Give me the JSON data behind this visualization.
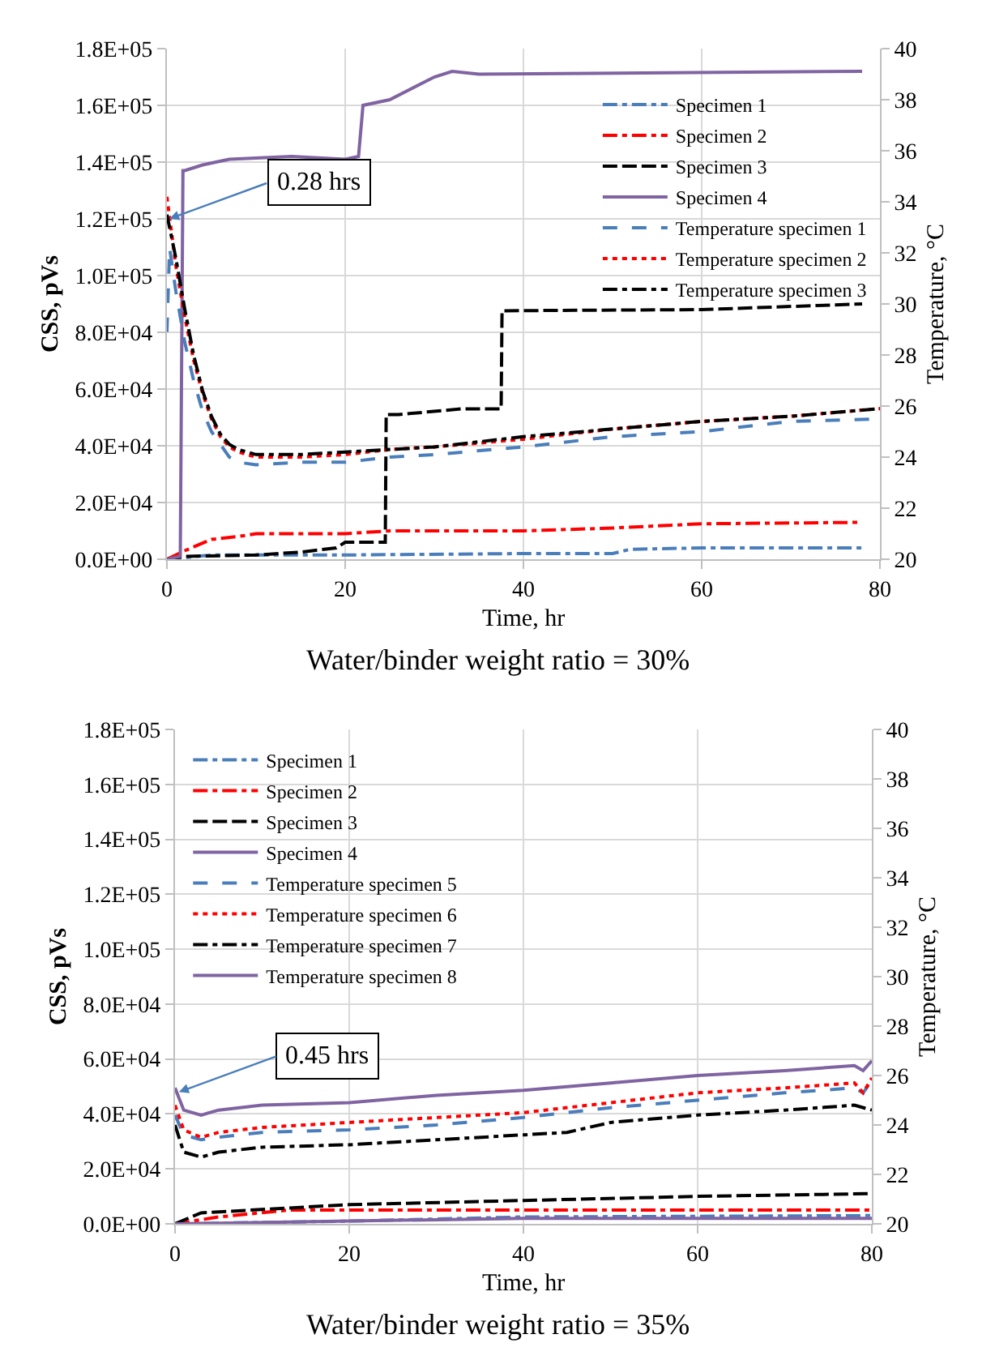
{
  "chart_data": [
    {
      "type": "line",
      "title": "Water/binder weight ratio = 30%",
      "xlabel": "Time, hr",
      "ylabel": "CSS, pVs",
      "y2label": "Temperature, °C",
      "xlim": [
        0,
        80
      ],
      "xticks": [
        0,
        20,
        40,
        60,
        80
      ],
      "ylim": [
        0,
        180000
      ],
      "yticks": [
        {
          "value": 0,
          "label": "0.0E+00"
        },
        {
          "value": 20000,
          "label": "2.0E+04"
        },
        {
          "value": 40000,
          "label": "4.0E+04"
        },
        {
          "value": 60000,
          "label": "6.0E+04"
        },
        {
          "value": 80000,
          "label": "8.0E+04"
        },
        {
          "value": 100000,
          "label": "1.0E+05"
        },
        {
          "value": 120000,
          "label": "1.2E+05"
        },
        {
          "value": 140000,
          "label": "1.4E+05"
        },
        {
          "value": 160000,
          "label": "1.6E+05"
        },
        {
          "value": 180000,
          "label": "1.8E+05"
        }
      ],
      "y2lim": [
        20,
        40
      ],
      "y2ticks": [
        20,
        22,
        24,
        26,
        28,
        30,
        32,
        34,
        36,
        38,
        40
      ],
      "grid": true,
      "legend": "right",
      "annotations": [
        {
          "text": "0.28 hrs",
          "x": 0.28,
          "y": 120000
        }
      ],
      "series": [
        {
          "name": "Specimen 1",
          "color": "#4a7ebb",
          "line_style": "dashdot",
          "x": [
            0,
            5,
            20,
            40,
            50,
            52,
            60,
            78
          ],
          "values": [
            0,
            1500,
            1500,
            2000,
            2000,
            3500,
            4000,
            4000
          ]
        },
        {
          "name": "Specimen 2",
          "color": "#ff0000",
          "line_style": "dashdot",
          "x": [
            0,
            2,
            5,
            8,
            10,
            20,
            25,
            40,
            50,
            60,
            78
          ],
          "values": [
            0,
            3000,
            7000,
            8000,
            9000,
            9000,
            10000,
            10000,
            11000,
            12500,
            13000
          ]
        },
        {
          "name": "Specimen 3",
          "color": "#000000",
          "line_style": "longdash",
          "x": [
            0,
            2,
            10,
            15,
            19,
            20,
            24.5,
            24.6,
            26,
            33,
            37.5,
            37.6,
            60,
            78
          ],
          "values": [
            0,
            1000,
            1500,
            2500,
            4000,
            6000,
            6000,
            51000,
            51000,
            53000,
            53000,
            87600,
            88000,
            90000
          ]
        },
        {
          "name": "Specimen 4",
          "color": "#8064a2",
          "line_style": "solid",
          "x": [
            0,
            1.5,
            1.8,
            2,
            4,
            7,
            14,
            20,
            21.5,
            22,
            25,
            30,
            32,
            35,
            78
          ],
          "values": [
            0,
            1000,
            137000,
            137000,
            139000,
            141000,
            142000,
            141000,
            142000,
            160000,
            162000,
            170000,
            172000,
            171000,
            172000
          ]
        },
        {
          "name": "Temperature specimen 1",
          "color": "#4a7ebb",
          "line_style": "dashed",
          "axis": "y2",
          "x": [
            0,
            0.3,
            1,
            2,
            3,
            4,
            5,
            6,
            7,
            8,
            10,
            15,
            20,
            25,
            30,
            40,
            50,
            60,
            70,
            80
          ],
          "values": [
            28.9,
            32.2,
            30.5,
            28.5,
            27,
            25.8,
            25,
            24.5,
            24.0,
            23.8,
            23.7,
            23.8,
            23.8,
            24.0,
            24.1,
            24.4,
            24.8,
            25.0,
            25.4,
            25.5
          ]
        },
        {
          "name": "Temperature specimen 2",
          "color": "#ff0000",
          "line_style": "dotted",
          "axis": "y2",
          "x": [
            0,
            1,
            2,
            3,
            4,
            5,
            6,
            7,
            8,
            10,
            15,
            20,
            25,
            30,
            40,
            50,
            60,
            70,
            80
          ],
          "values": [
            34.2,
            31.5,
            29.5,
            27.8,
            26.5,
            25.5,
            24.8,
            24.4,
            24.2,
            24.0,
            24.0,
            24.1,
            24.3,
            24.4,
            24.7,
            25.1,
            25.4,
            25.6,
            25.9
          ]
        },
        {
          "name": "Temperature specimen 3",
          "color": "#000000",
          "line_style": "dashdot",
          "axis": "y2",
          "x": [
            0,
            1,
            2,
            3,
            4,
            5,
            6,
            7,
            8,
            10,
            15,
            20,
            25,
            30,
            40,
            50,
            60,
            70,
            80
          ],
          "values": [
            33.5,
            31.8,
            29.8,
            28,
            26.6,
            25.6,
            24.9,
            24.5,
            24.3,
            24.1,
            24.1,
            24.2,
            24.3,
            24.4,
            24.8,
            25.1,
            25.4,
            25.6,
            25.9
          ]
        }
      ]
    },
    {
      "type": "line",
      "title": "Water/binder weight ratio = 35%",
      "xlabel": "Time, hr",
      "ylabel": "CSS, pVs",
      "y2label": "Temperature, °C",
      "xlim": [
        0,
        80
      ],
      "xticks": [
        0,
        20,
        40,
        60,
        80
      ],
      "ylim": [
        0,
        180000
      ],
      "yticks": [
        {
          "value": 0,
          "label": "0.0E+00"
        },
        {
          "value": 20000,
          "label": "2.0E+04"
        },
        {
          "value": 40000,
          "label": "4.0E+04"
        },
        {
          "value": 60000,
          "label": "6.0E+04"
        },
        {
          "value": 80000,
          "label": "8.0E+04"
        },
        {
          "value": 100000,
          "label": "1.0E+05"
        },
        {
          "value": 120000,
          "label": "1.2E+05"
        },
        {
          "value": 140000,
          "label": "1.4E+05"
        },
        {
          "value": 160000,
          "label": "1.6E+05"
        },
        {
          "value": 180000,
          "label": "1.8E+05"
        }
      ],
      "y2lim": [
        20,
        40
      ],
      "y2ticks": [
        20,
        22,
        24,
        26,
        28,
        30,
        32,
        34,
        36,
        38,
        40
      ],
      "grid": true,
      "legend": "top left",
      "annotations": [
        {
          "text": "0.45 hrs",
          "x": 0.45,
          "y": 48000
        }
      ],
      "series": [
        {
          "name": "Specimen 1",
          "color": "#4a7ebb",
          "line_style": "dashdot",
          "x": [
            0,
            20,
            40,
            80
          ],
          "values": [
            0,
            1000,
            2500,
            3000
          ]
        },
        {
          "name": "Specimen 2",
          "color": "#ff0000",
          "line_style": "dashdot",
          "x": [
            0,
            5,
            13,
            80
          ],
          "values": [
            0,
            2500,
            5000,
            5000
          ]
        },
        {
          "name": "Specimen 3",
          "color": "#000000",
          "line_style": "longdash",
          "x": [
            0,
            3,
            20,
            40,
            60,
            80
          ],
          "values": [
            0,
            4000,
            7000,
            8500,
            10000,
            11000
          ]
        },
        {
          "name": "Specimen 4",
          "color": "#8064a2",
          "line_style": "solid",
          "x": [
            0,
            20,
            40,
            80
          ],
          "values": [
            0,
            1000,
            2000,
            2000
          ]
        },
        {
          "name": "Temperature specimen 5",
          "color": "#4a7ebb",
          "line_style": "dashed",
          "axis": "y2",
          "x": [
            0,
            1,
            3,
            5,
            10,
            20,
            30,
            40,
            50,
            60,
            70,
            78,
            79,
            80
          ],
          "values": [
            24.4,
            23.6,
            23.4,
            23.5,
            23.7,
            23.8,
            24.0,
            24.3,
            24.7,
            25.0,
            25.3,
            25.5,
            25.3,
            25.8
          ]
        },
        {
          "name": "Temperature specimen 6",
          "color": "#ff0000",
          "line_style": "dotted",
          "axis": "y2",
          "x": [
            0,
            1,
            3,
            5,
            10,
            20,
            30,
            40,
            50,
            60,
            70,
            78,
            79,
            80
          ],
          "values": [
            24.8,
            23.8,
            23.5,
            23.7,
            23.9,
            24.1,
            24.3,
            24.5,
            24.9,
            25.3,
            25.5,
            25.7,
            25.3,
            25.9
          ]
        },
        {
          "name": "Temperature specimen 7",
          "color": "#000000",
          "line_style": "dashdot",
          "axis": "y2",
          "x": [
            0,
            1,
            3,
            5,
            10,
            20,
            30,
            40,
            45,
            50,
            60,
            70,
            78,
            80
          ],
          "values": [
            24,
            22.9,
            22.7,
            22.9,
            23.1,
            23.2,
            23.4,
            23.6,
            23.7,
            24.1,
            24.4,
            24.6,
            24.8,
            24.6
          ]
        },
        {
          "name": "Temperature specimen 8",
          "color": "#8064a2",
          "line_style": "solid",
          "axis": "y2",
          "x": [
            0,
            1,
            3,
            5,
            10,
            20,
            30,
            40,
            50,
            60,
            70,
            78,
            79,
            80
          ],
          "values": [
            25.5,
            24.6,
            24.4,
            24.6,
            24.8,
            24.9,
            25.2,
            25.4,
            25.7,
            26.0,
            26.2,
            26.4,
            26.2,
            26.6
          ]
        }
      ]
    }
  ]
}
